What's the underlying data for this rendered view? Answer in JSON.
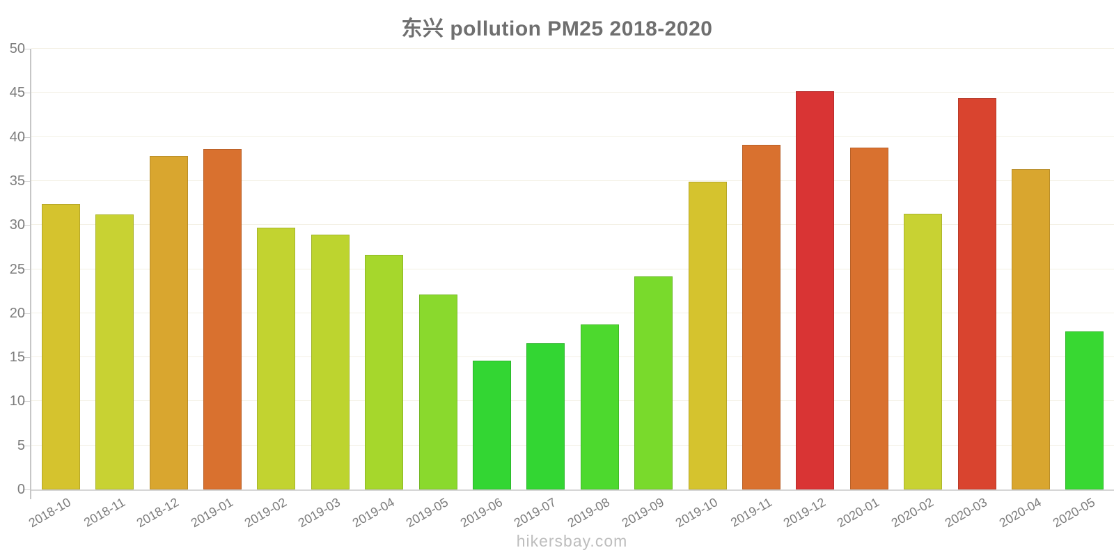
{
  "title": "东兴 pollution PM25 2018-2020",
  "watermark": "hikersbay.com",
  "colors": {
    "title_text": "#6f6f6f",
    "axis_line": "#c6c6c6",
    "xaxis_line": "#d6d6d6",
    "gridline": "#f3f0e4",
    "tick": "#d0d0d0",
    "tick_label": "#7c7c7c",
    "watermark_text": "#bdbdbd",
    "background": "#ffffff"
  },
  "chart_data": {
    "type": "bar",
    "title": "东兴 pollution PM25 2018-2020",
    "xlabel": "",
    "ylabel": "",
    "ylim": [
      0,
      50
    ],
    "yticks": [
      0,
      5,
      10,
      15,
      20,
      25,
      30,
      35,
      40,
      45,
      50
    ],
    "grid": true,
    "legend": false,
    "categories": [
      "2018-10",
      "2018-11",
      "2018-12",
      "2019-01",
      "2019-02",
      "2019-03",
      "2019-04",
      "2019-05",
      "2019-06",
      "2019-07",
      "2019-08",
      "2019-09",
      "2019-10",
      "2019-11",
      "2019-12",
      "2020-01",
      "2020-02",
      "2020-03",
      "2020-04",
      "2020-05"
    ],
    "values": [
      32.4,
      31.2,
      37.8,
      38.6,
      29.7,
      28.9,
      26.6,
      22.1,
      14.6,
      16.6,
      18.7,
      24.2,
      34.9,
      39.1,
      45.2,
      38.8,
      31.3,
      44.4,
      36.3,
      17.9
    ],
    "bar_colors": [
      "#d5c32e",
      "#c8d233",
      "#d9a62f",
      "#d9712f",
      "#c2d330",
      "#bdd42f",
      "#a6d72c",
      "#8ad92d",
      "#33d633",
      "#33d633",
      "#4dd92e",
      "#79da2c",
      "#d5c32e",
      "#d9712f",
      "#d93434",
      "#d9712f",
      "#c8d233",
      "#d9442f",
      "#d9a62f",
      "#38d832"
    ]
  }
}
